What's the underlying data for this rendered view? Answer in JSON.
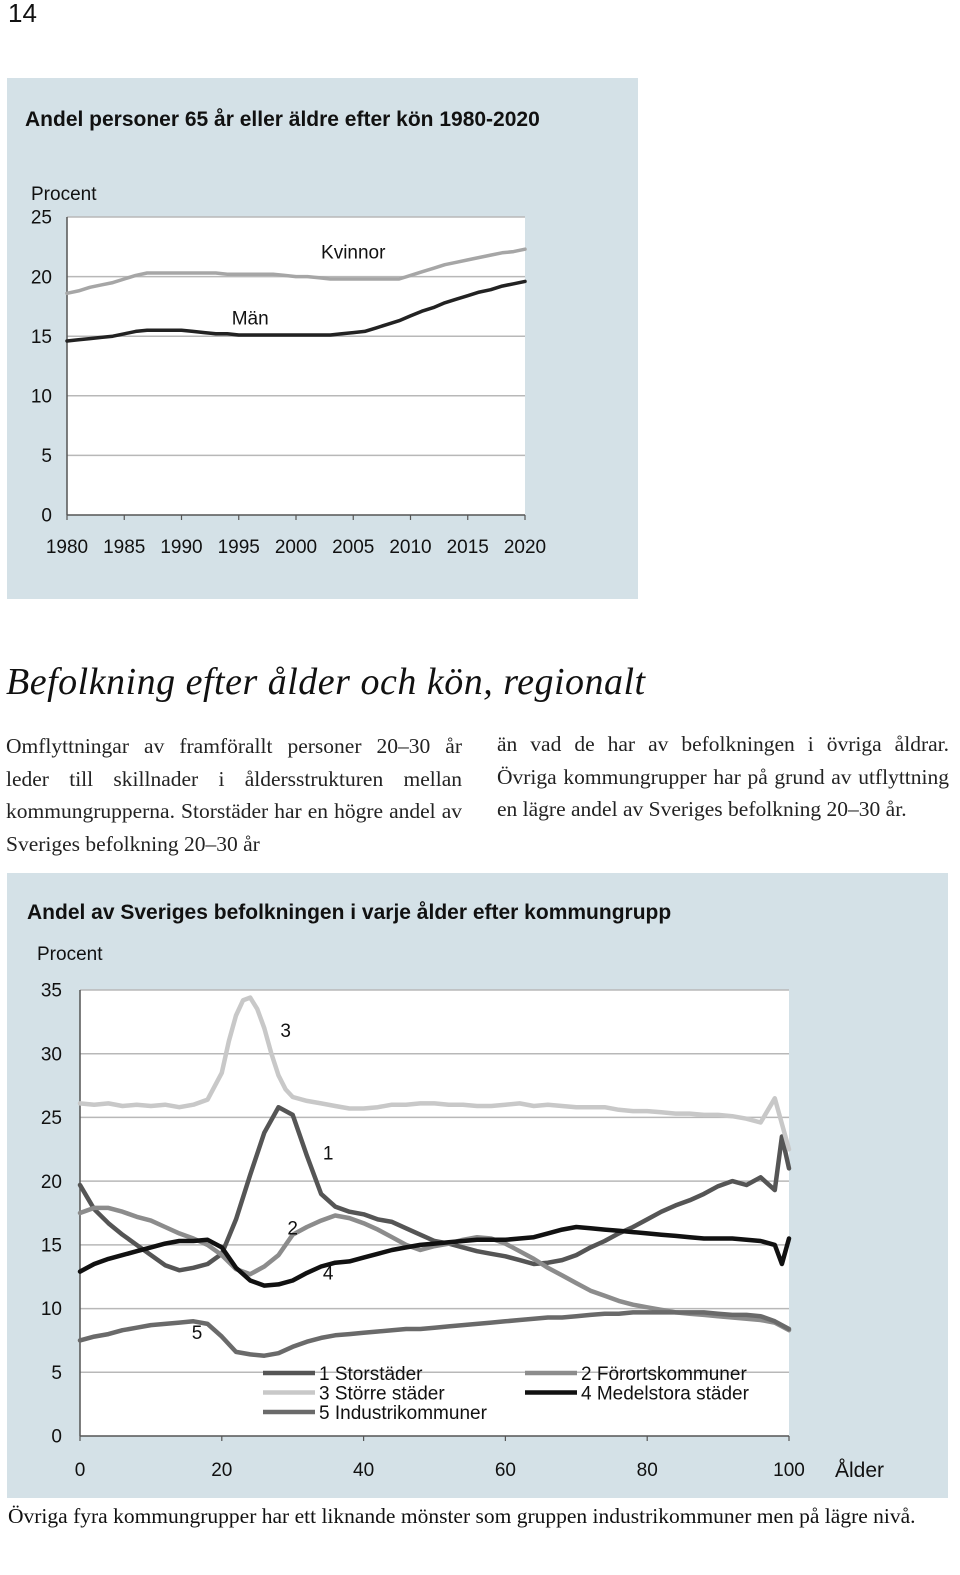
{
  "page_number": "14",
  "section": {
    "title": "Befolkning efter ålder och kön, regionalt",
    "left_column": "Omflyttningar av framförallt personer 20–30 år leder till skillnader i åldersstrukturen mellan kommungrupperna. Storstäder har en högre andel av Sveriges befolkning 20–30 år",
    "right_column": "än vad de har av befolkningen i övriga åldrar. Övriga kommungrupper har på grund av utflyttning en lägre andel av Sveriges befolkning 20–30 år."
  },
  "footer": "Övriga fyra kommungrupper har ett liknande mönster som gruppen industrikommuner men på lägre nivå.",
  "colors": {
    "panel_background": "#d4e1e7",
    "men": "#222222",
    "women": "#a6a6a6",
    "storstader": "#555555",
    "fororts": "#8c8c8c",
    "storre": "#c8c8c8",
    "medelstora": "#111111",
    "industri": "#6a6a6a"
  },
  "chart_data": [
    {
      "type": "line",
      "title": "Andel personer 65 år eller äldre efter kön 1980-2020",
      "ylabel": "Procent",
      "xlabel": "",
      "ylim": [
        0,
        25
      ],
      "yticks": [
        0,
        5,
        10,
        15,
        20,
        25
      ],
      "xlim": [
        1980,
        2020
      ],
      "xticks": [
        1980,
        1985,
        1990,
        1995,
        2000,
        2005,
        2010,
        2015,
        2020
      ],
      "grid": "horizontal",
      "series": [
        {
          "name": "Kvinnor",
          "color": "#a6a6a6",
          "x": [
            1980,
            1981,
            1982,
            1983,
            1984,
            1985,
            1986,
            1987,
            1988,
            1989,
            1990,
            1991,
            1992,
            1993,
            1994,
            1995,
            1996,
            1997,
            1998,
            1999,
            2000,
            2001,
            2002,
            2003,
            2004,
            2005,
            2006,
            2007,
            2008,
            2009,
            2010,
            2011,
            2012,
            2013,
            2014,
            2015,
            2016,
            2017,
            2018,
            2019,
            2020
          ],
          "values": [
            18.6,
            18.8,
            19.1,
            19.3,
            19.5,
            19.8,
            20.1,
            20.3,
            20.3,
            20.3,
            20.3,
            20.3,
            20.3,
            20.3,
            20.2,
            20.2,
            20.2,
            20.2,
            20.2,
            20.1,
            20.0,
            20.0,
            19.9,
            19.8,
            19.8,
            19.8,
            19.8,
            19.8,
            19.8,
            19.8,
            20.1,
            20.4,
            20.7,
            21.0,
            21.2,
            21.4,
            21.6,
            21.8,
            22.0,
            22.1,
            22.3
          ]
        },
        {
          "name": "Män",
          "color": "#222222",
          "x": [
            1980,
            1981,
            1982,
            1983,
            1984,
            1985,
            1986,
            1987,
            1988,
            1989,
            1990,
            1991,
            1992,
            1993,
            1994,
            1995,
            1996,
            1997,
            1998,
            1999,
            2000,
            2001,
            2002,
            2003,
            2004,
            2005,
            2006,
            2007,
            2008,
            2009,
            2010,
            2011,
            2012,
            2013,
            2014,
            2015,
            2016,
            2017,
            2018,
            2019,
            2020
          ],
          "values": [
            14.6,
            14.7,
            14.8,
            14.9,
            15.0,
            15.2,
            15.4,
            15.5,
            15.5,
            15.5,
            15.5,
            15.4,
            15.3,
            15.2,
            15.2,
            15.1,
            15.1,
            15.1,
            15.1,
            15.1,
            15.1,
            15.1,
            15.1,
            15.1,
            15.2,
            15.3,
            15.4,
            15.7,
            16.0,
            16.3,
            16.7,
            17.1,
            17.4,
            17.8,
            18.1,
            18.4,
            18.7,
            18.9,
            19.2,
            19.4,
            19.6
          ]
        }
      ],
      "annotations": [
        {
          "text": "Kvinnor",
          "x": 2005,
          "y": 21.5
        },
        {
          "text": "Män",
          "x": 1996,
          "y": 16.0
        }
      ]
    },
    {
      "type": "line",
      "title": "Andel av Sveriges befolkningen i varje ålder efter kommungrupp",
      "ylabel": "Procent",
      "xlabel": "Ålder",
      "ylim": [
        0,
        35
      ],
      "yticks": [
        0,
        5,
        10,
        15,
        20,
        25,
        30,
        35
      ],
      "xlim": [
        0,
        100
      ],
      "xticks": [
        0,
        20,
        40,
        60,
        80,
        100
      ],
      "grid": "horizontal",
      "legend": {
        "position": "bottom-center",
        "entries": [
          {
            "label": "1 Storstäder",
            "color": "#555555"
          },
          {
            "label": "2 Förortskommuner",
            "color": "#8c8c8c"
          },
          {
            "label": "3 Större städer",
            "color": "#c8c8c8"
          },
          {
            "label": "4 Medelstora städer",
            "color": "#111111"
          },
          {
            "label": "5 Industrikommuner",
            "color": "#6a6a6a"
          }
        ]
      },
      "series": [
        {
          "name": "1 Storstäder",
          "color": "#555555",
          "x": [
            0,
            2,
            4,
            6,
            8,
            10,
            12,
            14,
            16,
            18,
            20,
            22,
            24,
            26,
            28,
            30,
            32,
            34,
            36,
            38,
            40,
            42,
            44,
            46,
            48,
            50,
            52,
            54,
            56,
            58,
            60,
            62,
            64,
            66,
            68,
            70,
            72,
            74,
            76,
            78,
            80,
            82,
            84,
            86,
            88,
            90,
            92,
            94,
            96,
            98,
            99,
            100
          ],
          "values": [
            19.7,
            17.8,
            16.7,
            15.8,
            15.0,
            14.2,
            13.4,
            13.0,
            13.2,
            13.5,
            14.3,
            17.0,
            20.5,
            23.8,
            25.8,
            25.2,
            22.0,
            19.0,
            18.0,
            17.6,
            17.4,
            17.0,
            16.8,
            16.3,
            15.8,
            15.3,
            15.1,
            14.8,
            14.5,
            14.3,
            14.1,
            13.8,
            13.5,
            13.6,
            13.8,
            14.2,
            14.8,
            15.3,
            15.9,
            16.4,
            17.0,
            17.6,
            18.1,
            18.5,
            19.0,
            19.6,
            20.0,
            19.7,
            20.3,
            19.3,
            23.5,
            21.0
          ]
        },
        {
          "name": "2 Förortskommuner",
          "color": "#8c8c8c",
          "x": [
            0,
            2,
            4,
            6,
            8,
            10,
            12,
            14,
            16,
            18,
            20,
            22,
            24,
            26,
            28,
            30,
            32,
            34,
            36,
            38,
            40,
            42,
            44,
            46,
            48,
            50,
            52,
            54,
            56,
            58,
            60,
            62,
            64,
            66,
            68,
            70,
            72,
            74,
            76,
            78,
            80,
            82,
            84,
            86,
            88,
            90,
            92,
            94,
            96,
            98,
            100
          ],
          "values": [
            17.5,
            17.9,
            17.9,
            17.6,
            17.2,
            16.9,
            16.4,
            15.9,
            15.5,
            15.0,
            14.2,
            13.1,
            12.7,
            13.3,
            14.2,
            15.8,
            16.4,
            16.9,
            17.3,
            17.1,
            16.7,
            16.2,
            15.6,
            15.0,
            14.6,
            14.9,
            15.1,
            15.4,
            15.6,
            15.5,
            15.1,
            14.5,
            13.9,
            13.2,
            12.6,
            12.0,
            11.4,
            11.0,
            10.6,
            10.3,
            10.1,
            9.9,
            9.7,
            9.6,
            9.5,
            9.4,
            9.3,
            9.2,
            9.1,
            8.9,
            8.3
          ]
        },
        {
          "name": "3 Större städer",
          "color": "#c8c8c8",
          "x": [
            0,
            2,
            4,
            6,
            8,
            10,
            12,
            14,
            16,
            18,
            20,
            21,
            22,
            23,
            24,
            25,
            26,
            27,
            28,
            29,
            30,
            32,
            34,
            36,
            38,
            40,
            42,
            44,
            46,
            48,
            50,
            52,
            54,
            56,
            58,
            60,
            62,
            64,
            66,
            68,
            70,
            72,
            74,
            76,
            78,
            80,
            82,
            84,
            86,
            88,
            90,
            92,
            94,
            96,
            98,
            100
          ],
          "values": [
            26.1,
            26.0,
            26.1,
            25.9,
            26.0,
            25.9,
            26.0,
            25.8,
            26.0,
            26.4,
            28.5,
            31.0,
            33.0,
            34.2,
            34.4,
            33.5,
            32.0,
            30.0,
            28.3,
            27.2,
            26.6,
            26.3,
            26.1,
            25.9,
            25.7,
            25.7,
            25.8,
            26.0,
            26.0,
            26.1,
            26.1,
            26.0,
            26.0,
            25.9,
            25.9,
            26.0,
            26.1,
            25.9,
            26.0,
            25.9,
            25.8,
            25.8,
            25.8,
            25.6,
            25.5,
            25.5,
            25.4,
            25.3,
            25.3,
            25.2,
            25.2,
            25.1,
            24.9,
            24.6,
            26.5,
            22.5
          ]
        },
        {
          "name": "4 Medelstora städer",
          "color": "#111111",
          "x": [
            0,
            2,
            4,
            6,
            8,
            10,
            12,
            14,
            16,
            18,
            20,
            22,
            24,
            26,
            28,
            30,
            32,
            34,
            36,
            38,
            40,
            42,
            44,
            46,
            48,
            50,
            52,
            54,
            56,
            58,
            60,
            62,
            64,
            66,
            68,
            70,
            72,
            74,
            76,
            78,
            80,
            82,
            84,
            86,
            88,
            90,
            92,
            94,
            96,
            98,
            99,
            100
          ],
          "values": [
            12.9,
            13.5,
            13.9,
            14.2,
            14.5,
            14.8,
            15.1,
            15.3,
            15.3,
            15.4,
            14.8,
            13.2,
            12.2,
            11.8,
            11.9,
            12.2,
            12.8,
            13.3,
            13.6,
            13.7,
            14.0,
            14.3,
            14.6,
            14.8,
            15.0,
            15.1,
            15.2,
            15.3,
            15.4,
            15.4,
            15.4,
            15.5,
            15.6,
            15.9,
            16.2,
            16.4,
            16.3,
            16.2,
            16.1,
            16.0,
            15.9,
            15.8,
            15.7,
            15.6,
            15.5,
            15.5,
            15.5,
            15.4,
            15.3,
            15.0,
            13.5,
            15.5
          ]
        },
        {
          "name": "5 Industrikommuner",
          "color": "#6a6a6a",
          "x": [
            0,
            2,
            4,
            6,
            8,
            10,
            12,
            14,
            16,
            18,
            20,
            22,
            24,
            26,
            28,
            30,
            32,
            34,
            36,
            38,
            40,
            42,
            44,
            46,
            48,
            50,
            52,
            54,
            56,
            58,
            60,
            62,
            64,
            66,
            68,
            70,
            72,
            74,
            76,
            78,
            80,
            82,
            84,
            86,
            88,
            90,
            92,
            94,
            96,
            98,
            100
          ],
          "values": [
            7.5,
            7.8,
            8.0,
            8.3,
            8.5,
            8.7,
            8.8,
            8.9,
            9.0,
            8.8,
            7.8,
            6.6,
            6.4,
            6.3,
            6.5,
            7.0,
            7.4,
            7.7,
            7.9,
            8.0,
            8.1,
            8.2,
            8.3,
            8.4,
            8.4,
            8.5,
            8.6,
            8.7,
            8.8,
            8.9,
            9.0,
            9.1,
            9.2,
            9.3,
            9.3,
            9.4,
            9.5,
            9.6,
            9.6,
            9.7,
            9.7,
            9.7,
            9.7,
            9.7,
            9.7,
            9.6,
            9.5,
            9.5,
            9.4,
            9.0,
            8.4
          ]
        }
      ],
      "annotations": [
        {
          "text": "1",
          "x": 35,
          "y": 21.7
        },
        {
          "text": "2",
          "x": 30,
          "y": 15.8
        },
        {
          "text": "3",
          "x": 29,
          "y": 31.3
        },
        {
          "text": "4",
          "x": 35,
          "y": 12.3
        },
        {
          "text": "5",
          "x": 16.5,
          "y": 7.6
        }
      ]
    }
  ]
}
